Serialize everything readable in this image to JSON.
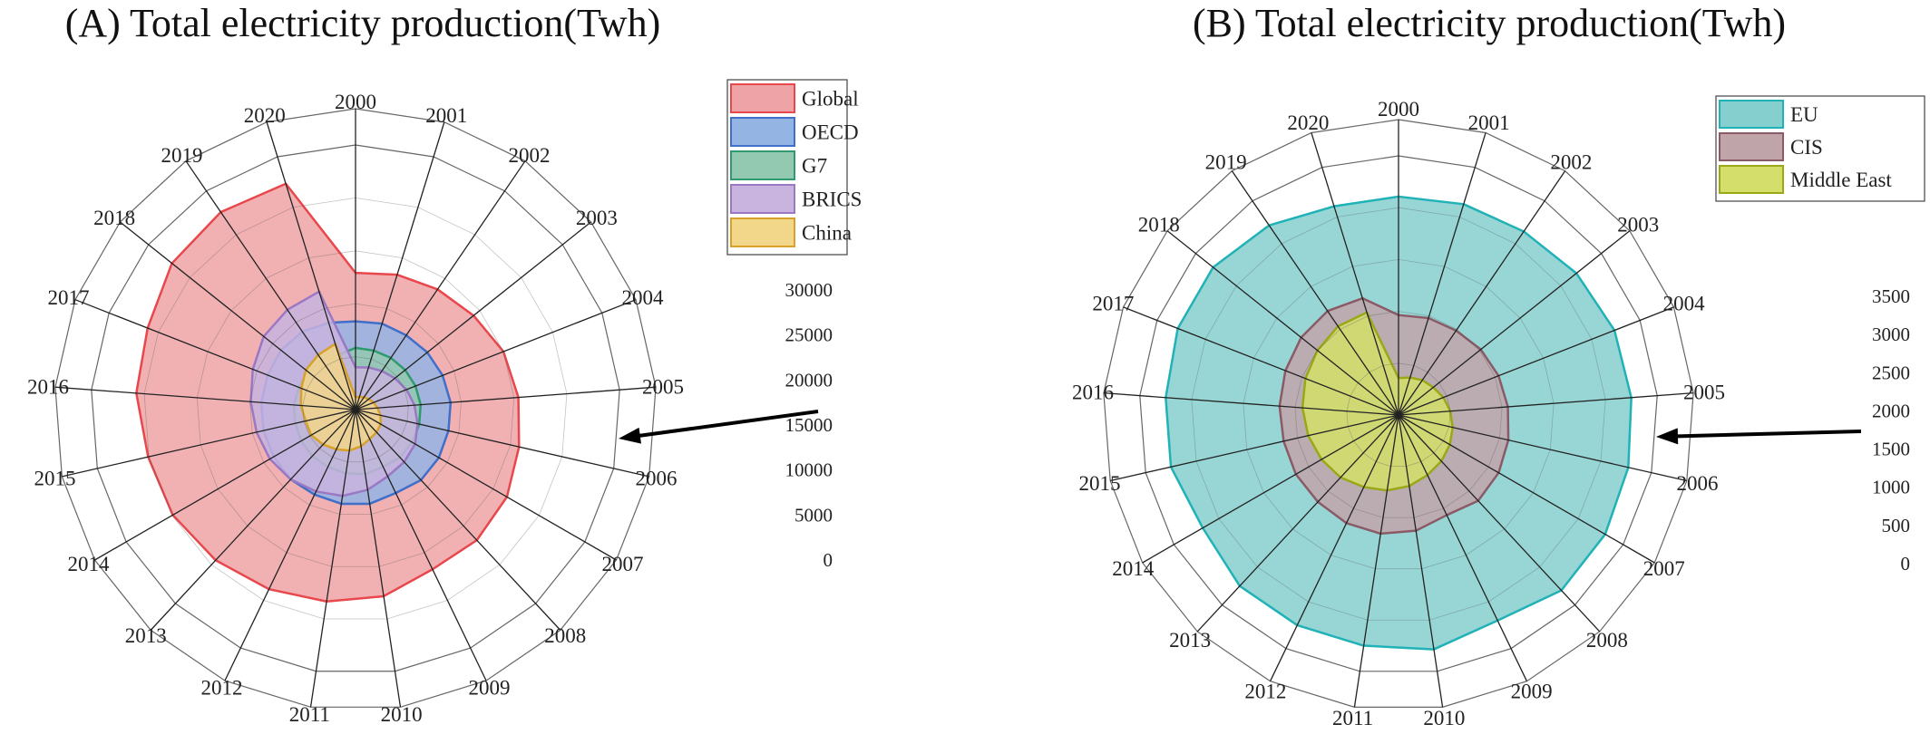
{
  "chart_data": [
    {
      "type": "radar",
      "title": "(A)  Total electricity production(Twh)",
      "axes": [
        "2000",
        "2001",
        "2002",
        "2003",
        "2004",
        "2005",
        "2006",
        "2007",
        "2008",
        "2009",
        "2010",
        "2011",
        "2012",
        "2013",
        "2014",
        "2015",
        "2016",
        "2017",
        "2018",
        "2019",
        "2020"
      ],
      "rlim": [
        0,
        30000
      ],
      "ticks": [
        "0",
        "5000",
        "10000",
        "15000",
        "20000",
        "25000",
        "30000"
      ],
      "grid": true,
      "legend_position": "top-right",
      "series": [
        {
          "name": "Global",
          "color": "#e8474c",
          "fill": "#eea3a6",
          "values": [
            15500,
            16000,
            16500,
            17100,
            18000,
            18500,
            19000,
            19800,
            20200,
            20100,
            21400,
            22000,
            22600,
            23300,
            23900,
            24100,
            24900,
            25300,
            26600,
            27100,
            26800
          ]
        },
        {
          "name": "OECD",
          "color": "#3f6fc9",
          "fill": "#94b4e4",
          "values": [
            10000,
            10200,
            10200,
            10400,
            10600,
            10800,
            10800,
            10900,
            10900,
            10500,
            10800,
            10800,
            10700,
            10800,
            10700,
            10700,
            10700,
            10700,
            10800,
            10700,
            10300
          ]
        },
        {
          "name": "G7",
          "color": "#2f9a6e",
          "fill": "#93c9b0",
          "values": [
            7000,
            7000,
            7100,
            7200,
            7300,
            7400,
            7400,
            7400,
            7400,
            7200,
            7400,
            7300,
            7200,
            7200,
            7100,
            7000,
            7000,
            6900,
            6900,
            6800,
            6500
          ]
        },
        {
          "name": "BRICS",
          "color": "#9a78c4",
          "fill": "#c8b4df",
          "values": [
            4800,
            5000,
            5300,
            5700,
            6200,
            6700,
            7200,
            7800,
            8100,
            8400,
            9200,
            9900,
            10300,
            10800,
            11200,
            11500,
            11900,
            12500,
            13300,
            13700,
            14000
          ]
        },
        {
          "name": "China",
          "color": "#d7a12a",
          "fill": "#f2d68a",
          "values": [
            1400,
            1500,
            1700,
            1900,
            2200,
            2500,
            2900,
            3300,
            3500,
            3700,
            4200,
            4700,
            5000,
            5400,
            5800,
            5800,
            6200,
            6600,
            7200,
            7500,
            7800
          ]
        }
      ]
    },
    {
      "type": "radar",
      "title": "(B)  Total electricity production(Twh)",
      "axes": [
        "2000",
        "2001",
        "2002",
        "2003",
        "2004",
        "2005",
        "2006",
        "2007",
        "2008",
        "2009",
        "2010",
        "2011",
        "2012",
        "2013",
        "2014",
        "2015",
        "2016",
        "2017",
        "2018",
        "2019",
        "2020"
      ],
      "rlim": [
        0,
        3500
      ],
      "ticks": [
        "0",
        "500",
        "1000",
        "1500",
        "2000",
        "2500",
        "3000",
        "3500"
      ],
      "grid": true,
      "legend_position": "top-right",
      "series": [
        {
          "name": "EU",
          "color": "#20b2b6",
          "fill": "#86cfcf",
          "values": [
            2950,
            2980,
            3000,
            3070,
            3130,
            3150,
            3180,
            3220,
            3230,
            3080,
            3200,
            3150,
            3150,
            3150,
            3050,
            3150,
            3150,
            3200,
            3200,
            3100,
            2950
          ]
        },
        {
          "name": "CIS",
          "color": "#8a5b66",
          "fill": "#bfa5aa",
          "values": [
            1350,
            1370,
            1380,
            1420,
            1450,
            1480,
            1520,
            1560,
            1580,
            1500,
            1580,
            1620,
            1620,
            1600,
            1600,
            1590,
            1610,
            1640,
            1680,
            1700,
            1650
          ]
        },
        {
          "name": "Middle East",
          "color": "#9aa817",
          "fill": "#d3df6a",
          "values": [
            500,
            530,
            570,
            600,
            650,
            700,
            750,
            800,
            850,
            900,
            970,
            1030,
            1080,
            1150,
            1200,
            1250,
            1300,
            1350,
            1400,
            1450,
            1450
          ]
        }
      ]
    }
  ]
}
